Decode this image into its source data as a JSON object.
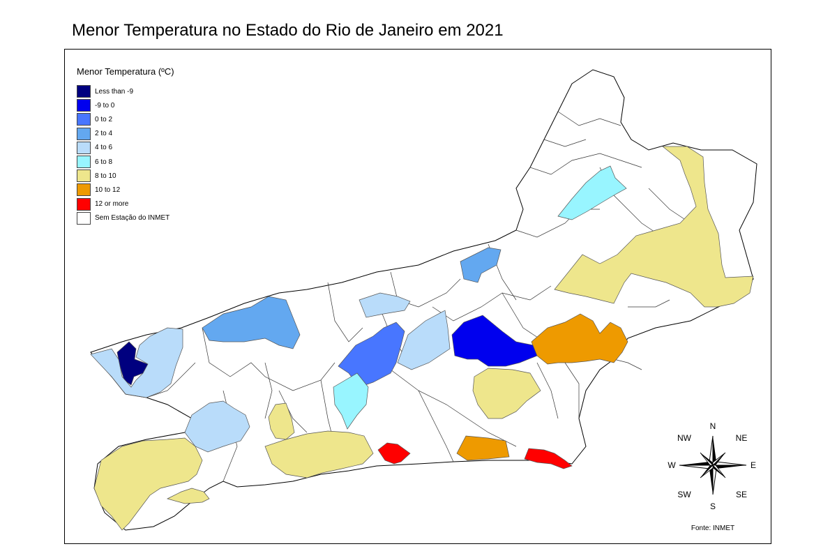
{
  "map": {
    "title": "Menor Temperatura no Estado do Rio de Janeiro em 2021",
    "legend": {
      "title": "Menor Temperatura (ºC)",
      "items": [
        {
          "label": "Less than -9",
          "color": "#00007f"
        },
        {
          "label": "-9 to 0",
          "color": "#0000ee"
        },
        {
          "label": "0 to 2",
          "color": "#4876ff"
        },
        {
          "label": "2 to 4",
          "color": "#63a8f0"
        },
        {
          "label": "4 to 6",
          "color": "#b9dcfa"
        },
        {
          "label": "6 to 8",
          "color": "#98f5ff"
        },
        {
          "label": "8 to 10",
          "color": "#eee68c"
        },
        {
          "label": "10 to 12",
          "color": "#ee9a00"
        },
        {
          "label": "12 or more",
          "color": "#ff0000"
        },
        {
          "label": "Sem Estação do INMET",
          "color": "#ffffff"
        }
      ]
    },
    "compass": {
      "N": "N",
      "NE": "NE",
      "E": "E",
      "SE": "SE",
      "S": "S",
      "SW": "SW",
      "W": "W",
      "NW": "NW"
    },
    "source": "Fonte: INMET"
  }
}
